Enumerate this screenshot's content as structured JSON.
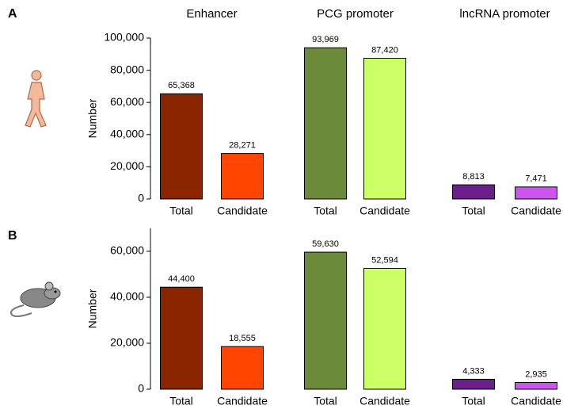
{
  "chart_data": [
    {
      "type": "bar",
      "panel_label": "A",
      "ylabel": "Number",
      "ylim": [
        0,
        100000
      ],
      "yticks": [
        0,
        {
          "value": 20000,
          "label": "20,000"
        },
        {
          "value": 40000,
          "label": "40,000"
        },
        {
          "value": 60000,
          "label": "60,000"
        },
        {
          "value": 80000,
          "label": "80,000"
        },
        {
          "value": 100000,
          "label": "100,000"
        }
      ],
      "groups": [
        {
          "name": "Enhancer",
          "categories": [
            "Total",
            "Candidate"
          ],
          "values": [
            65368,
            28271
          ],
          "value_labels": [
            "65,368",
            "28,271"
          ],
          "colors": [
            "#8b2500",
            "#ff4500"
          ]
        },
        {
          "name": "PCG promoter",
          "categories": [
            "Total",
            "Candidate"
          ],
          "values": [
            93969,
            87420
          ],
          "value_labels": [
            "93,969",
            "87,420"
          ],
          "colors": [
            "#6b8a3a",
            "#ccff66"
          ]
        },
        {
          "name": "lncRNA promoter",
          "categories": [
            "Total",
            "Candidate"
          ],
          "values": [
            8813,
            7471
          ],
          "value_labels": [
            "8,813",
            "7,471"
          ],
          "colors": [
            "#6a1f8a",
            "#cc55ee"
          ]
        }
      ]
    },
    {
      "type": "bar",
      "panel_label": "B",
      "ylabel": "Number",
      "ylim": [
        0,
        70000
      ],
      "yticks": [
        0,
        {
          "value": 20000,
          "label": "20,000"
        },
        {
          "value": 40000,
          "label": "40,000"
        },
        {
          "value": 60000,
          "label": "60,000"
        }
      ],
      "groups": [
        {
          "categories": [
            "Total",
            "Candidate"
          ],
          "values": [
            44400,
            18555
          ],
          "value_labels": [
            "44,400",
            "18,555"
          ],
          "colors": [
            "#8b2500",
            "#ff4500"
          ]
        },
        {
          "categories": [
            "Total",
            "Candidate"
          ],
          "values": [
            59630,
            52594
          ],
          "value_labels": [
            "59,630",
            "52,594"
          ],
          "colors": [
            "#6b8a3a",
            "#ccff66"
          ]
        },
        {
          "categories": [
            "Total",
            "Candidate"
          ],
          "values": [
            4333,
            2935
          ],
          "value_labels": [
            "4,333",
            "2,935"
          ],
          "colors": [
            "#6a1f8a",
            "#cc55ee"
          ]
        }
      ]
    }
  ]
}
